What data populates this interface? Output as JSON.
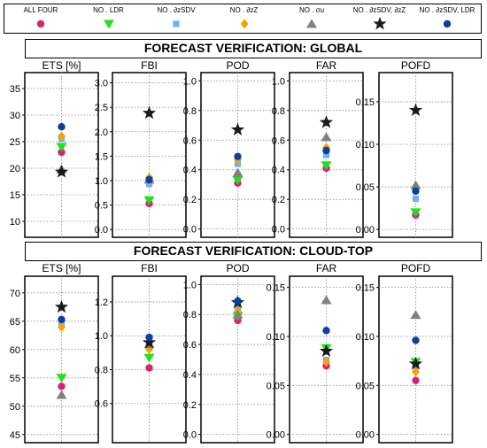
{
  "legend": [
    {
      "label": "ALL FOUR",
      "color": "#d6246e",
      "marker": "circle"
    },
    {
      "label": "NO . LDR",
      "color": "#22e01a",
      "marker": "triangle-down"
    },
    {
      "label": "NO . ∂zSDV",
      "color": "#6ab4f0",
      "marker": "square"
    },
    {
      "label": "NO . ∂zZ",
      "color": "#f5a300",
      "marker": "diamond"
    },
    {
      "label": "NO . σu",
      "color": "#808080",
      "marker": "triangle-up"
    },
    {
      "label": "NO . ∂zSDV, ∂zZ",
      "color": "#1a1a1a",
      "marker": "star"
    },
    {
      "label": "NO . ∂zSDV, LDR",
      "color": "#0b3fa0",
      "marker": "circle"
    }
  ],
  "sections": {
    "global_title": "FORECAST VERIFICATION:  GLOBAL",
    "cloud_title": "FORECAST VERIFICATION:  CLOUD-TOP"
  },
  "chart_data": [
    {
      "type": "scatter",
      "section": "global",
      "panels": [
        {
          "title": "ETS [%]",
          "ylim": [
            8,
            37
          ],
          "ticks": [
            10,
            15,
            20,
            25,
            30,
            35
          ],
          "tick_labels": [
            "10",
            "15",
            "20",
            "25",
            "30",
            "35"
          ],
          "values": {
            "ALL FOUR": 23.0,
            "NO . LDR": 24.0,
            "NO . ∂zSDV": 25.5,
            "NO . ∂zZ": 26.0,
            "NO . σu": 19.8,
            "NO . ∂zSDV, ∂zZ": 19.3,
            "NO . ∂zSDV, LDR": 27.8
          }
        },
        {
          "title": "FBI",
          "ylim": [
            -0.05,
            3.1
          ],
          "ticks": [
            0.0,
            0.5,
            1.0,
            1.5,
            2.0,
            2.5,
            3.0
          ],
          "tick_labels": [
            "0.0",
            "0.5",
            "1.0",
            "1.5",
            "2.0",
            "2.5",
            "3.0"
          ],
          "values": {
            "ALL FOUR": 0.53,
            "NO . LDR": 0.6,
            "NO . ∂zSDV": 0.93,
            "NO . ∂zZ": 1.06,
            "NO . σu": 1.02,
            "NO . ∂zSDV, ∂zZ": 2.38,
            "NO . ∂zSDV, LDR": 1.02
          }
        },
        {
          "title": "POD",
          "ylim": [
            -0.02,
            1.02
          ],
          "ticks": [
            0.0,
            0.2,
            0.4,
            0.6,
            0.8,
            1.0
          ],
          "tick_labels": [
            "0.0",
            "0.2",
            "0.4",
            "0.6",
            "0.8",
            "1.0"
          ],
          "values": {
            "ALL FOUR": 0.31,
            "NO . LDR": 0.33,
            "NO . ∂zSDV": 0.44,
            "NO . ∂zZ": 0.47,
            "NO . σu": 0.38,
            "NO . ∂zSDV, ∂zZ": 0.67,
            "NO . ∂zSDV, LDR": 0.49
          }
        },
        {
          "title": "FAR",
          "ylim": [
            -0.02,
            1.02
          ],
          "ticks": [
            0.0,
            0.2,
            0.4,
            0.6,
            0.8,
            1.0
          ],
          "tick_labels": [
            "0.0",
            "0.2",
            "0.4",
            "0.6",
            "0.8",
            "1.0"
          ],
          "values": {
            "ALL FOUR": 0.41,
            "NO . LDR": 0.43,
            "NO . ∂zSDV": 0.5,
            "NO . ∂zZ": 0.55,
            "NO . σu": 0.62,
            "NO . ∂zSDV, ∂zZ": 0.72,
            "NO . ∂zSDV, LDR": 0.53
          }
        },
        {
          "title": "POFD",
          "ylim": [
            -0.003,
            0.178
          ],
          "ticks": [
            0.0,
            0.05,
            0.1,
            0.15
          ],
          "tick_labels": [
            "0.00",
            "0.05",
            "0.10",
            "0.15"
          ],
          "values": {
            "ALL FOUR": 0.017,
            "NO . LDR": 0.02,
            "NO . ∂zSDV": 0.036,
            "NO . ∂zZ": 0.05,
            "NO . σu": 0.052,
            "NO . ∂zSDV, ∂zZ": 0.14,
            "NO . ∂zSDV, LDR": 0.045
          }
        }
      ]
    },
    {
      "type": "scatter",
      "section": "cloud-top",
      "panels": [
        {
          "title": "ETS [%]",
          "ylim": [
            44.5,
            72
          ],
          "ticks": [
            45,
            50,
            55,
            60,
            65,
            70
          ],
          "tick_labels": [
            "45",
            "50",
            "55",
            "60",
            "65",
            "70"
          ],
          "values": {
            "ALL FOUR": 53.5,
            "NO . LDR": 55.0,
            "NO . ∂zSDV": 64.8,
            "NO . ∂zZ": 64.0,
            "NO . σu": 52.0,
            "NO . ∂zSDV, ∂zZ": 67.5,
            "NO . ∂zSDV, LDR": 65.3
          }
        },
        {
          "title": "FBI",
          "ylim": [
            0.4,
            1.32
          ],
          "ticks": [
            0.6,
            0.8,
            1.0,
            1.2
          ],
          "tick_labels": [
            "0.6",
            "0.8",
            "1.0",
            "1.2"
          ],
          "values": {
            "ALL FOUR": 0.81,
            "NO . LDR": 0.87,
            "NO . ∂zSDV": 0.93,
            "NO . ∂zZ": 0.92,
            "NO . σu": 0.95,
            "NO . ∂zSDV, ∂zZ": 0.96,
            "NO . ∂zSDV, LDR": 0.99
          }
        },
        {
          "title": "POD",
          "ylim": [
            -0.02,
            1.02
          ],
          "ticks": [
            0.0,
            0.2,
            0.4,
            0.6,
            0.8,
            1.0
          ],
          "tick_labels": [
            "0.0",
            "0.2",
            "0.4",
            "0.6",
            "0.8",
            "1.0"
          ],
          "values": {
            "ALL FOUR": 0.76,
            "NO . LDR": 0.79,
            "NO . ∂zSDV": 0.85,
            "NO . ∂zZ": 0.82,
            "NO . σu": 0.8,
            "NO . ∂zSDV, ∂zZ": 0.88,
            "NO . ∂zSDV, LDR": 0.89
          }
        },
        {
          "title": "FAR",
          "ylim": [
            -0.003,
            0.156
          ],
          "ticks": [
            0.0,
            0.05,
            0.1,
            0.15
          ],
          "tick_labels": [
            "0.00",
            "0.05",
            "0.10",
            "0.15"
          ],
          "values": {
            "ALL FOUR": 0.07,
            "NO . LDR": 0.088,
            "NO . ∂zSDV": 0.076,
            "NO . ∂zZ": 0.074,
            "NO . σu": 0.137,
            "NO . ∂zSDV, ∂zZ": 0.085,
            "NO . ∂zSDV, LDR": 0.106
          }
        },
        {
          "title": "POFD",
          "ylim": [
            -0.003,
            0.156
          ],
          "ticks": [
            0.0,
            0.05,
            0.1,
            0.15
          ],
          "tick_labels": [
            "0.00",
            "0.05",
            "0.10",
            "0.15"
          ],
          "values": {
            "ALL FOUR": 0.055,
            "NO . LDR": 0.074,
            "NO . ∂zSDV": 0.07,
            "NO . ∂zZ": 0.064,
            "NO . σu": 0.122,
            "NO . ∂zSDV, ∂zZ": 0.072,
            "NO . ∂zSDV, LDR": 0.096
          }
        }
      ]
    }
  ]
}
